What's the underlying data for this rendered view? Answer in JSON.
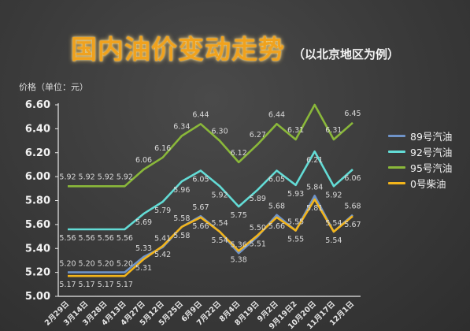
{
  "colors": {
    "background": "#3a3a3a",
    "title": "#f0a21e",
    "gasoline89": "#6f93c8",
    "gasoline92": "#63dcd6",
    "gasoline95": "#8ab83a",
    "diesel0": "#f3b51b",
    "label": "#d8d8d8",
    "axis": "#ffffff"
  },
  "header": {
    "title": "国内油价变动走势",
    "subtitle": "（以北京地区为例）"
  },
  "axis": {
    "unit_label": "价格（单位：元）"
  },
  "chart_data": {
    "type": "line",
    "title": "国内油价变动走势",
    "subtitle": "（以北京地区为例）",
    "ylabel": "价格（单位：元）",
    "ylim": [
      5.0,
      6.6
    ],
    "yticks": [
      "5.00",
      "5.20",
      "5.40",
      "5.60",
      "5.80",
      "6.00",
      "6.20",
      "6.40",
      "6.60"
    ],
    "grid": false,
    "legend_position": "right",
    "x": [
      "2月29日",
      "3月14日",
      "3月28日",
      "4月13日",
      "4月27日",
      "5月12日",
      "5月25日",
      "6月9日",
      "7月22日",
      "8月4日",
      "8月19日",
      "9月2日",
      "9月19日2",
      "10月20日",
      "11月17日",
      "12月1日"
    ],
    "series": [
      {
        "name": "89号汽油",
        "color": "#6f93c8",
        "values": [
          5.2,
          5.2,
          5.2,
          5.2,
          5.33,
          5.41,
          5.58,
          5.67,
          5.54,
          5.36,
          5.5,
          5.68,
          5.55,
          5.84,
          5.54,
          5.68
        ],
        "labels": [
          "5.20",
          "5.20",
          "5.20",
          "5.20",
          "5.33",
          "5.41",
          "5.58",
          "5.67",
          "5.54",
          "5.36",
          "5.50",
          "5.68",
          "5.55",
          "5.84",
          "5.54",
          "5.68"
        ]
      },
      {
        "name": "92号汽油",
        "color": "#63dcd6",
        "values": [
          5.56,
          5.56,
          5.56,
          5.56,
          5.69,
          5.79,
          5.96,
          6.05,
          5.92,
          5.75,
          5.89,
          6.05,
          5.93,
          6.21,
          5.92,
          6.06
        ],
        "labels": [
          "5.56",
          "5.56",
          "5.56",
          "5.56",
          "5.69",
          "5.79",
          "5.96",
          "6.05",
          "5.92",
          "5.75",
          "5.89",
          "6.05",
          "5.93",
          "6.21",
          "5.92",
          "6.06"
        ]
      },
      {
        "name": "95号汽油",
        "color": "#8ab83a",
        "values": [
          5.92,
          5.92,
          5.92,
          5.92,
          6.06,
          6.16,
          6.34,
          6.44,
          6.3,
          6.12,
          6.27,
          6.44,
          6.31,
          6.6,
          6.31,
          6.45
        ],
        "labels": [
          "5.92",
          "5.92",
          "5.92",
          "5.92",
          "6.06",
          "6.16",
          "6.34",
          "6.44",
          "6.30",
          "6.12",
          "6.27",
          "6.44",
          "6.31",
          "",
          "6.31",
          "6.45"
        ]
      },
      {
        "name": "0号柴油",
        "color": "#f3b51b",
        "values": [
          5.17,
          5.17,
          5.17,
          5.17,
          5.31,
          5.42,
          5.58,
          5.66,
          5.54,
          5.38,
          5.51,
          5.66,
          5.55,
          5.81,
          5.54,
          5.67
        ],
        "labels": [
          "5.17",
          "5.17",
          "5.17",
          "5.17",
          "5.31",
          "5.42",
          "5.58",
          "5.66",
          "5.54",
          "5.38",
          "5.51",
          "5.66",
          "5.55",
          "5.81",
          "5.54",
          "5.67"
        ]
      }
    ]
  }
}
